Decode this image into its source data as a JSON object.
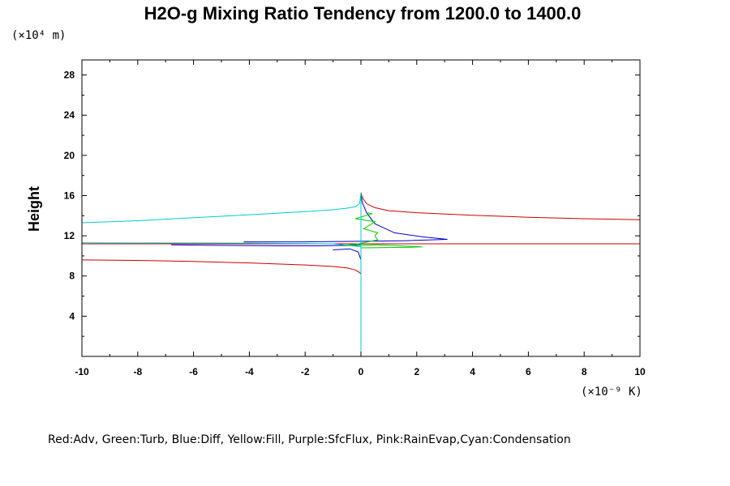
{
  "chart_data": {
    "type": "line",
    "title": "H2O-g Mixing Ratio Tendency from 1200.0 to 1400.0",
    "ylabel": "Height",
    "y_unit": "(×10⁴ m)",
    "x_unit": "(×10⁻⁹ K)",
    "xlim": [
      -10,
      10
    ],
    "ylim": [
      0,
      29.5
    ],
    "x_ticks": [
      -10,
      -8,
      -6,
      -4,
      -2,
      0,
      2,
      4,
      6,
      8,
      10
    ],
    "x_tick_labels": [
      "-10",
      "-8",
      "-6",
      "-4",
      "-2",
      "0",
      "2",
      "4",
      "6",
      "8",
      "10"
    ],
    "y_ticks": [
      4,
      8,
      12,
      16,
      20,
      24,
      28
    ],
    "y_tick_labels": [
      "4",
      "8",
      "12",
      "16",
      "20",
      "24",
      "28"
    ],
    "legend_text": "Red:Adv, Green:Turb, Blue:Diff, Yellow:Fill, Purple:SfcFlux, Pink:RainEvap,Cyan:Condensation",
    "series": [
      {
        "name": "Adv",
        "color": "#cc0000",
        "segments": [
          [
            [
              -10,
              9.6
            ],
            [
              -8,
              9.55
            ],
            [
              -6,
              9.45
            ],
            [
              -4,
              9.3
            ],
            [
              -2,
              9.1
            ],
            [
              -1,
              8.95
            ],
            [
              -0.5,
              8.8
            ],
            [
              -0.2,
              8.6
            ],
            [
              -0.05,
              8.35
            ],
            [
              0,
              8.2
            ]
          ],
          [
            [
              -10,
              11.2
            ],
            [
              10,
              11.2
            ]
          ],
          [
            [
              0,
              16.3
            ],
            [
              0.05,
              15.8
            ],
            [
              0.2,
              15.2
            ],
            [
              0.5,
              14.8
            ],
            [
              1,
              14.5
            ],
            [
              2,
              14.3
            ],
            [
              4,
              14.05
            ],
            [
              6,
              13.85
            ],
            [
              8,
              13.7
            ],
            [
              10,
              13.6
            ]
          ]
        ]
      },
      {
        "name": "Diff",
        "color": "#0000cc",
        "segments": [
          [
            [
              -6.8,
              11.1
            ],
            [
              -5,
              11.05
            ],
            [
              -3,
              11.0
            ],
            [
              -1.5,
              11.0
            ],
            [
              -0.5,
              11.05
            ],
            [
              0,
              11.1
            ]
          ],
          [
            [
              -1,
              10.6
            ],
            [
              -0.4,
              10.7
            ],
            [
              -0.1,
              10.4
            ],
            [
              0,
              9.6
            ]
          ],
          [
            [
              -4.2,
              11.4
            ],
            [
              -2,
              11.4
            ],
            [
              0,
              11.45
            ],
            [
              1.5,
              11.5
            ],
            [
              3.1,
              11.65
            ],
            [
              2.2,
              11.9
            ],
            [
              1.2,
              12.3
            ],
            [
              0.5,
              13.2
            ],
            [
              0.2,
              14.3
            ],
            [
              0.05,
              15.3
            ],
            [
              0,
              16.1
            ]
          ]
        ]
      },
      {
        "name": "Turb",
        "color": "#00cc00",
        "segments": [
          [
            [
              0,
              10.8
            ],
            [
              1.6,
              10.85
            ],
            [
              2.2,
              10.9
            ],
            [
              0.6,
              11.1
            ],
            [
              -0.7,
              11.0
            ],
            [
              -0.1,
              11.2
            ],
            [
              0.6,
              11.6
            ],
            [
              0.5,
              12.0
            ],
            [
              0.6,
              12.3
            ],
            [
              0.1,
              12.7
            ],
            [
              0.5,
              13.4
            ],
            [
              -0.2,
              13.7
            ],
            [
              0.4,
              14.2
            ],
            [
              0.2,
              14.3
            ]
          ]
        ]
      },
      {
        "name": "Condensation",
        "color": "#00cccc",
        "segments": [
          [
            [
              0,
              0
            ],
            [
              0,
              16.2
            ]
          ],
          [
            [
              0,
              16.2
            ],
            [
              -0.05,
              15.2
            ],
            [
              -0.2,
              14.9
            ],
            [
              -0.5,
              14.75
            ],
            [
              -1,
              14.6
            ],
            [
              -2,
              14.4
            ],
            [
              -4,
              14.1
            ],
            [
              -6,
              13.8
            ],
            [
              -8,
              13.5
            ],
            [
              -10,
              13.3
            ]
          ],
          [
            [
              -10,
              11.3
            ],
            [
              -4,
              11.28
            ],
            [
              -1,
              11.2
            ],
            [
              -0.3,
              11.0
            ],
            [
              0,
              10.9
            ]
          ]
        ]
      }
    ]
  }
}
